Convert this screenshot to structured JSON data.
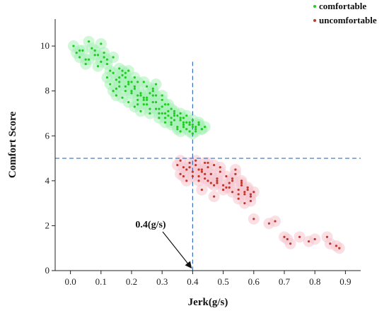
{
  "chart_data": {
    "type": "scatter",
    "title": "",
    "xlabel": "Jerk(g/s)",
    "ylabel": "Comfort Score",
    "xlim": [
      -0.05,
      0.95
    ],
    "ylim": [
      0,
      11.2
    ],
    "x_ticks": [
      0.0,
      0.1,
      0.2,
      0.3,
      0.4,
      0.5,
      0.6,
      0.7,
      0.8,
      0.9
    ],
    "x_tick_labels": [
      "0.0",
      "0.1",
      "0.2",
      "0.3",
      "0.4",
      "0.5",
      "0.6",
      "0.7",
      "0.8",
      "0.9"
    ],
    "y_ticks": [
      0,
      2,
      4,
      6,
      8,
      10
    ],
    "y_tick_labels": [
      "0",
      "2",
      "4",
      "6",
      "8",
      "10"
    ],
    "grid": false,
    "legend_position": "top-right",
    "threshold_lines": {
      "x": 0.4,
      "y": 5
    },
    "annotation": {
      "text": "0.4(g/s)",
      "points_to": [
        0.4,
        0
      ]
    },
    "series": [
      {
        "name": "comfortable",
        "color": "#22cc22",
        "halo_color": "#a8f0b8",
        "x": [
          0.01,
          0.02,
          0.03,
          0.04,
          0.05,
          0.06,
          0.07,
          0.08,
          0.09,
          0.1,
          0.11,
          0.12,
          0.12,
          0.13,
          0.14,
          0.15,
          0.16,
          0.17,
          0.18,
          0.19,
          0.2,
          0.21,
          0.22,
          0.23,
          0.24,
          0.25,
          0.26,
          0.27,
          0.28,
          0.29,
          0.3,
          0.31,
          0.32,
          0.33,
          0.34,
          0.35,
          0.36,
          0.37,
          0.38,
          0.39,
          0.4,
          0.41,
          0.42,
          0.43,
          0.44,
          0.14,
          0.15,
          0.16,
          0.17,
          0.18,
          0.19,
          0.2,
          0.21,
          0.22,
          0.23,
          0.24,
          0.25,
          0.26,
          0.27,
          0.28,
          0.29,
          0.3,
          0.31,
          0.32,
          0.33,
          0.34,
          0.35,
          0.36,
          0.37,
          0.38,
          0.39,
          0.4,
          0.41,
          0.42,
          0.15,
          0.17,
          0.19,
          0.21,
          0.23,
          0.25,
          0.27,
          0.29,
          0.31,
          0.33,
          0.35,
          0.37,
          0.39,
          0.41,
          0.13,
          0.16,
          0.18,
          0.2,
          0.22,
          0.24,
          0.26,
          0.28,
          0.3,
          0.32,
          0.34,
          0.36,
          0.38,
          0.4,
          0.42,
          0.06,
          0.08,
          0.1,
          0.11,
          0.14,
          0.16,
          0.19,
          0.22,
          0.25,
          0.28,
          0.31,
          0.34,
          0.37,
          0.4,
          0.03,
          0.05,
          0.09,
          0.12,
          0.18,
          0.21,
          0.24,
          0.27,
          0.3,
          0.33,
          0.36,
          0.39,
          0.43
        ],
        "y": [
          10.0,
          9.7,
          9.5,
          9.8,
          9.2,
          9.4,
          9.9,
          9.6,
          9.1,
          9.3,
          9.5,
          8.6,
          9.2,
          8.3,
          8.8,
          8.1,
          8.6,
          8.9,
          8.0,
          8.4,
          7.9,
          8.2,
          7.6,
          7.8,
          7.4,
          7.7,
          7.2,
          8.1,
          7.5,
          7.0,
          7.3,
          6.8,
          7.1,
          6.6,
          6.9,
          6.4,
          6.7,
          6.5,
          6.3,
          6.6,
          6.4,
          6.2,
          6.5,
          6.3,
          6.4,
          8.0,
          7.8,
          8.4,
          7.7,
          8.2,
          7.5,
          8.0,
          7.3,
          7.8,
          7.1,
          7.6,
          7.4,
          7.0,
          7.5,
          7.2,
          6.8,
          7.0,
          6.6,
          6.9,
          6.5,
          6.7,
          6.3,
          6.8,
          6.4,
          6.6,
          6.2,
          6.7,
          6.3,
          6.6,
          8.5,
          8.7,
          8.3,
          8.1,
          7.9,
          7.6,
          7.8,
          7.2,
          7.0,
          6.8,
          6.9,
          6.6,
          6.5,
          6.4,
          8.9,
          8.2,
          8.6,
          8.4,
          7.4,
          7.7,
          7.9,
          8.3,
          7.6,
          7.4,
          7.1,
          6.2,
          6.9,
          6.1,
          6.5,
          10.2,
          9.8,
          10.1,
          9.7,
          9.5,
          9.0,
          8.9,
          8.4,
          8.2,
          7.8,
          7.4,
          7.0,
          6.8,
          6.5,
          9.8,
          9.4,
          9.6,
          9.4,
          8.8,
          8.6,
          8.4,
          8.0,
          7.8,
          7.2,
          7.0,
          6.5,
          6.3
        ]
      },
      {
        "name": "uncomfortable",
        "color": "#c0392b",
        "halo_color": "#f6c6cf",
        "x": [
          0.35,
          0.36,
          0.37,
          0.38,
          0.39,
          0.4,
          0.41,
          0.42,
          0.43,
          0.44,
          0.45,
          0.46,
          0.47,
          0.48,
          0.49,
          0.5,
          0.51,
          0.52,
          0.53,
          0.54,
          0.55,
          0.56,
          0.57,
          0.58,
          0.59,
          0.6,
          0.36,
          0.38,
          0.4,
          0.41,
          0.42,
          0.43,
          0.44,
          0.45,
          0.46,
          0.47,
          0.48,
          0.5,
          0.52,
          0.53,
          0.54,
          0.55,
          0.56,
          0.57,
          0.58,
          0.59,
          0.37,
          0.39,
          0.42,
          0.44,
          0.46,
          0.48,
          0.51,
          0.53,
          0.55,
          0.57,
          0.59,
          0.45,
          0.43,
          0.47,
          0.49,
          0.56,
          0.6,
          0.65,
          0.67,
          0.7,
          0.71,
          0.72,
          0.75,
          0.78,
          0.8,
          0.84,
          0.85,
          0.87,
          0.88
        ],
        "y": [
          4.7,
          4.3,
          4.6,
          4.0,
          4.8,
          4.4,
          4.9,
          4.2,
          4.5,
          4.1,
          4.6,
          4.3,
          4.7,
          3.9,
          4.4,
          3.8,
          4.2,
          3.7,
          4.0,
          4.5,
          3.6,
          3.9,
          3.4,
          3.7,
          3.3,
          3.5,
          4.9,
          4.5,
          4.2,
          4.7,
          4.0,
          4.4,
          4.8,
          4.0,
          4.3,
          3.8,
          4.1,
          3.6,
          3.9,
          3.5,
          4.3,
          3.2,
          3.8,
          3.0,
          3.6,
          3.4,
          4.2,
          4.6,
          4.5,
          4.3,
          3.9,
          4.0,
          3.7,
          4.1,
          3.4,
          3.5,
          3.1,
          4.8,
          3.6,
          3.3,
          4.6,
          4.0,
          2.3,
          2.1,
          2.2,
          1.5,
          1.4,
          1.2,
          1.5,
          1.3,
          1.4,
          1.5,
          1.2,
          1.1,
          1.0
        ]
      }
    ]
  }
}
